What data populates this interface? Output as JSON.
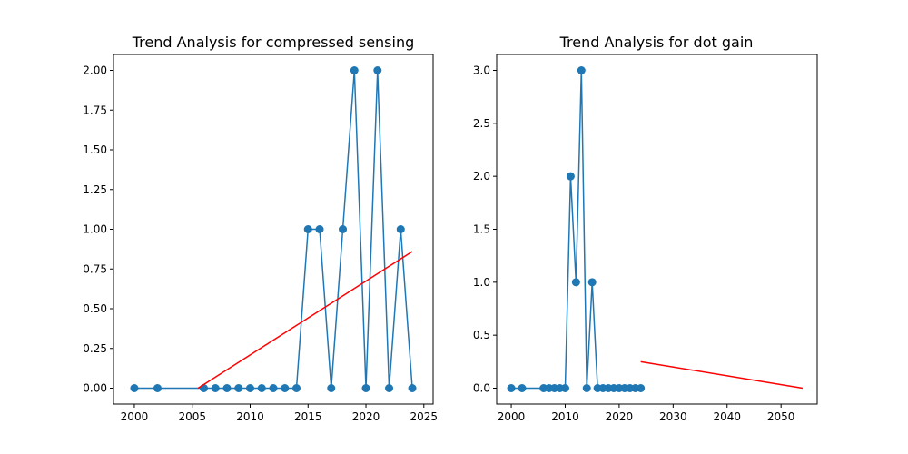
{
  "chart_data": [
    {
      "type": "line",
      "title": "Trend Analysis for compressed sensing",
      "xlabel": "",
      "ylabel": "",
      "xlim": [
        1998.2,
        2025.8
      ],
      "ylim": [
        -0.1,
        2.1
      ],
      "xticks": [
        2000,
        2005,
        2010,
        2015,
        2020,
        2025
      ],
      "xtick_labels": [
        "2000",
        "2005",
        "2010",
        "2015",
        "2020",
        "2025"
      ],
      "yticks": [
        0,
        0.25,
        0.5,
        0.75,
        1.0,
        1.25,
        1.5,
        1.75,
        2.0
      ],
      "ytick_labels": [
        "0.00",
        "0.25",
        "0.50",
        "0.75",
        "1.00",
        "1.25",
        "1.50",
        "1.75",
        "2.00"
      ],
      "grid": false,
      "series": [
        {
          "kind": "line-markers",
          "color": "#1f77b4",
          "x": [
            2000,
            2002,
            2006,
            2007,
            2008,
            2009,
            2010,
            2011,
            2012,
            2013,
            2014,
            2015,
            2016,
            2017,
            2018,
            2019,
            2020,
            2021,
            2022,
            2023,
            2024
          ],
          "y": [
            0,
            0,
            0,
            0,
            0,
            0,
            0,
            0,
            0,
            0,
            0,
            1,
            1,
            0,
            1,
            2,
            0,
            2,
            0,
            1,
            0
          ]
        },
        {
          "kind": "trend-line",
          "color": "#ff0000",
          "x": [
            2005.5,
            2024
          ],
          "y": [
            0,
            0.86
          ]
        }
      ]
    },
    {
      "type": "line",
      "title": "Trend Analysis for dot gain",
      "xlabel": "",
      "ylabel": "",
      "xlim": [
        1997.3,
        2056.7
      ],
      "ylim": [
        -0.15,
        3.15
      ],
      "xticks": [
        2000,
        2010,
        2020,
        2030,
        2040,
        2050
      ],
      "xtick_labels": [
        "2000",
        "2010",
        "2020",
        "2030",
        "2040",
        "2050"
      ],
      "yticks": [
        0,
        0.5,
        1.0,
        1.5,
        2.0,
        2.5,
        3.0
      ],
      "ytick_labels": [
        "0.0",
        "0.5",
        "1.0",
        "1.5",
        "2.0",
        "2.5",
        "3.0"
      ],
      "grid": false,
      "series": [
        {
          "kind": "line-markers",
          "color": "#1f77b4",
          "x": [
            2000,
            2002,
            2006,
            2007,
            2008,
            2009,
            2010,
            2011,
            2012,
            2013,
            2014,
            2015,
            2016,
            2017,
            2018,
            2019,
            2020,
            2021,
            2022,
            2023,
            2024
          ],
          "y": [
            0,
            0,
            0,
            0,
            0,
            0,
            0,
            2,
            1,
            3,
            0,
            1,
            0,
            0,
            0,
            0,
            0,
            0,
            0,
            0,
            0
          ]
        },
        {
          "kind": "trend-line",
          "color": "#ff0000",
          "x": [
            2024,
            2054
          ],
          "y": [
            0.25,
            0
          ]
        }
      ]
    }
  ]
}
